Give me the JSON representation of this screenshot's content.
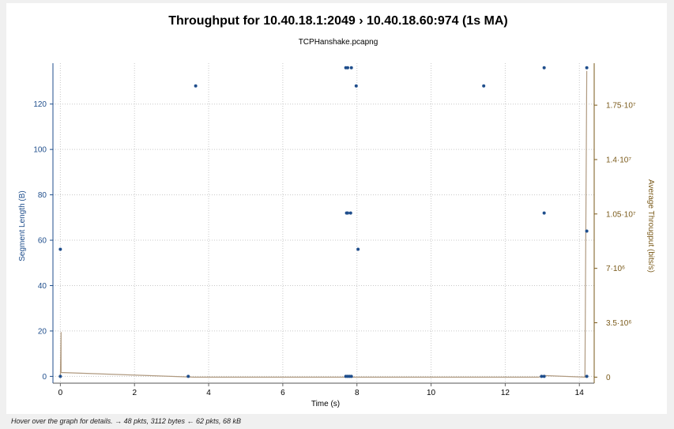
{
  "chart_data": {
    "type": "scatter",
    "title": "Throughput for 10.40.18.1:2049    › 10.40.18.60:974 (1s MA)",
    "subtitle": "TCPHanshake.pcapng",
    "xlabel": "Time (s)",
    "ylabel_left": "Segment Length (B)",
    "ylabel_right": "Average Througput (bits/s)",
    "xlim": [
      -0.2,
      14.4
    ],
    "ylim_left": [
      -3,
      138
    ],
    "ylim_right": [
      -388000,
      20200000
    ],
    "x_ticks": [
      "0",
      "2",
      "4",
      "6",
      "8",
      "10",
      "12",
      "14"
    ],
    "y_ticks_left": [
      "0",
      "20",
      "40",
      "60",
      "80",
      "100",
      "120"
    ],
    "y_ticks_right": [
      "0",
      "3.5·10⁶",
      "7·10⁶",
      "1.05·10⁷",
      "1.4·10⁷",
      "1.75·10⁷"
    ],
    "grid": true,
    "series": [
      {
        "axis": "left",
        "color": "#1f4e8c",
        "points": [
          [
            0.0,
            56
          ],
          [
            0.0,
            0
          ],
          [
            3.45,
            0
          ],
          [
            3.65,
            128
          ],
          [
            7.7,
            136
          ],
          [
            7.75,
            136
          ],
          [
            7.72,
            72
          ],
          [
            7.75,
            72
          ],
          [
            7.83,
            72
          ],
          [
            7.7,
            0
          ],
          [
            7.75,
            0
          ],
          [
            7.8,
            0
          ],
          [
            7.85,
            0
          ],
          [
            7.85,
            136
          ],
          [
            7.98,
            128
          ],
          [
            8.03,
            56
          ],
          [
            11.42,
            128
          ],
          [
            12.98,
            0
          ],
          [
            13.05,
            0
          ],
          [
            13.05,
            72
          ],
          [
            13.05,
            136
          ],
          [
            14.2,
            136
          ],
          [
            14.2,
            64
          ],
          [
            14.2,
            0
          ]
        ]
      },
      {
        "axis": "right",
        "color": "#b09a80",
        "line": [
          [
            0.0,
            0
          ],
          [
            0.02,
            2900000
          ],
          [
            0.02,
            300000
          ],
          [
            3.6,
            0
          ],
          [
            7.7,
            0
          ],
          [
            8.0,
            0
          ],
          [
            12.9,
            0
          ],
          [
            13.05,
            100000
          ],
          [
            14.15,
            0
          ],
          [
            14.2,
            19700000
          ]
        ]
      }
    ]
  },
  "status": {
    "text": "Hover over the graph for details. → 48 pkts, 3112 bytes ← 62 pkts, 68 kB"
  }
}
